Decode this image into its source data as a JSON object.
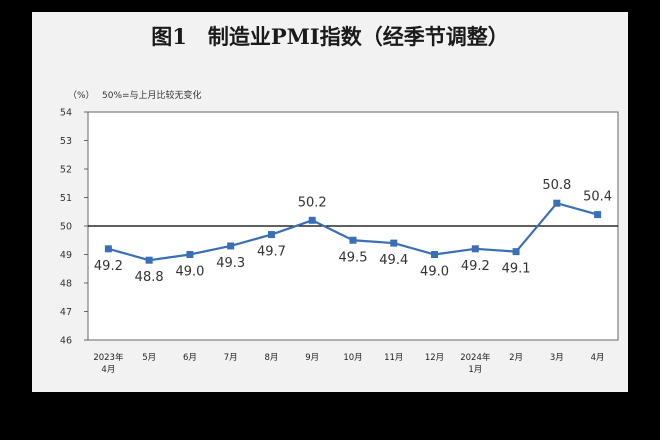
{
  "chart_data": {
    "type": "line",
    "title": "图1　制造业PMI指数（经季节调整）",
    "unit_label": "（%）",
    "reference_note": "50%=与上月比较无变化",
    "reference_value": 50,
    "ylim": [
      46,
      54
    ],
    "yticks": [
      "46",
      "47",
      "48",
      "49",
      "50",
      "51",
      "52",
      "53",
      "54"
    ],
    "categories": [
      [
        "2023年",
        "4月"
      ],
      [
        "5月"
      ],
      [
        "6月"
      ],
      [
        "7月"
      ],
      [
        "8月"
      ],
      [
        "9月"
      ],
      [
        "10月"
      ],
      [
        "11月"
      ],
      [
        "12月"
      ],
      [
        "2024年",
        "1月"
      ],
      [
        "2月"
      ],
      [
        "3月"
      ],
      [
        "4月"
      ]
    ],
    "values": [
      49.2,
      48.8,
      49.0,
      49.3,
      49.7,
      50.2,
      49.5,
      49.4,
      49.0,
      49.2,
      49.1,
      50.8,
      50.4
    ],
    "data_labels": [
      "49.2",
      "48.8",
      "49.0",
      "49.3",
      "49.7",
      "50.2",
      "49.5",
      "49.4",
      "49.0",
      "49.2",
      "49.1",
      "50.8",
      "50.4"
    ],
    "series_color": "#3a6fb5",
    "reference_line_color": "#000000",
    "grid": false
  }
}
